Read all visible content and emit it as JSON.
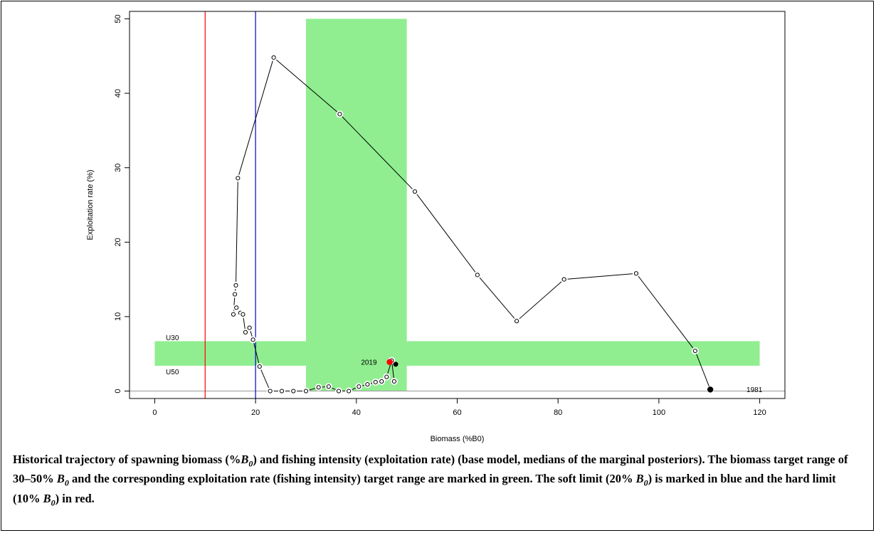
{
  "chart_data": {
    "type": "scatter",
    "title": "",
    "xlabel": "Biomass (%B0)",
    "ylabel": "Exploitation rate (%)",
    "xlim": [
      -5,
      125
    ],
    "ylim": [
      -1,
      51
    ],
    "xticks": [
      0,
      20,
      40,
      60,
      80,
      100,
      120
    ],
    "yticks": [
      0,
      10,
      20,
      30,
      40,
      50
    ],
    "grid": false,
    "legend": "none",
    "series": [
      {
        "type": "line+points",
        "x": [
          110.2,
          107.2,
          95.5,
          81.2,
          71.8,
          64.0,
          51.6,
          36.7,
          23.6,
          16.5,
          16.1,
          15.9,
          15.6,
          16.2,
          17.0,
          17.5,
          18.0,
          18.8,
          19.5,
          20.8,
          22.9,
          25.2,
          27.5,
          30.0,
          32.5,
          34.5,
          36.5,
          38.5,
          40.5,
          42.2,
          43.8,
          45.0,
          46.0,
          47.0,
          47.5
        ],
        "y": [
          0.2,
          5.4,
          15.8,
          15.0,
          9.4,
          15.6,
          26.8,
          37.2,
          44.8,
          28.6,
          14.2,
          13.0,
          10.3,
          11.2,
          10.5,
          10.3,
          7.9,
          8.5,
          6.9,
          3.3,
          0.0,
          0.0,
          0.0,
          0.0,
          0.5,
          0.6,
          0.0,
          0.0,
          0.6,
          0.9,
          1.2,
          1.3,
          1.9,
          4.1,
          1.3
        ]
      }
    ],
    "highlight_points": [
      {
        "label": "2019",
        "x": 46.6,
        "y": 3.9,
        "color": "#ff0000"
      },
      {
        "label": "1981",
        "x": 110.2,
        "y": 0.2,
        "color": "#000000"
      }
    ],
    "extra_black_point": {
      "x": 47.8,
      "y": 3.6
    },
    "target_ranges": {
      "biomass": {
        "x": [
          30,
          50
        ],
        "y": [
          0,
          50
        ]
      },
      "exploitation": {
        "x": [
          0,
          120
        ],
        "y": [
          3.4,
          6.7
        ]
      },
      "color": "#90ee90"
    },
    "reference_lines": {
      "soft_limit": {
        "x": 20,
        "color": "#0000cc"
      },
      "hard_limit": {
        "x": 10,
        "color": "#ff0000"
      },
      "zero_line": {
        "y": 0,
        "color": "#999999"
      }
    },
    "annotations": [
      {
        "text": "U30",
        "x": 3.5,
        "y": 7.1
      },
      {
        "text": "U50",
        "x": 3.5,
        "y": 2.5
      }
    ]
  },
  "caption": {
    "parts": [
      {
        "text": "Historical trajectory of spawning biomass (%",
        "italic": false
      },
      {
        "text": "B",
        "italic": true
      },
      {
        "text": "0",
        "italic": true,
        "sub": true
      },
      {
        "text": ") and fishing intensity (exploitation rate) (base model, medians of the marginal posteriors). The biomass target range of 30–50% ",
        "italic": false
      },
      {
        "text": "B",
        "italic": true
      },
      {
        "text": "0",
        "italic": true,
        "sub": true
      },
      {
        "text": " and the corresponding exploitation rate (fishing intensity) target range are marked in green. The soft limit (20% ",
        "italic": false
      },
      {
        "text": "B",
        "italic": true
      },
      {
        "text": "0",
        "italic": true,
        "sub": true
      },
      {
        "text": ") is marked in blue and the hard limit (10% ",
        "italic": false
      },
      {
        "text": "B",
        "italic": true
      },
      {
        "text": "0",
        "italic": true,
        "sub": true
      },
      {
        "text": ") in red.",
        "italic": false
      }
    ]
  }
}
